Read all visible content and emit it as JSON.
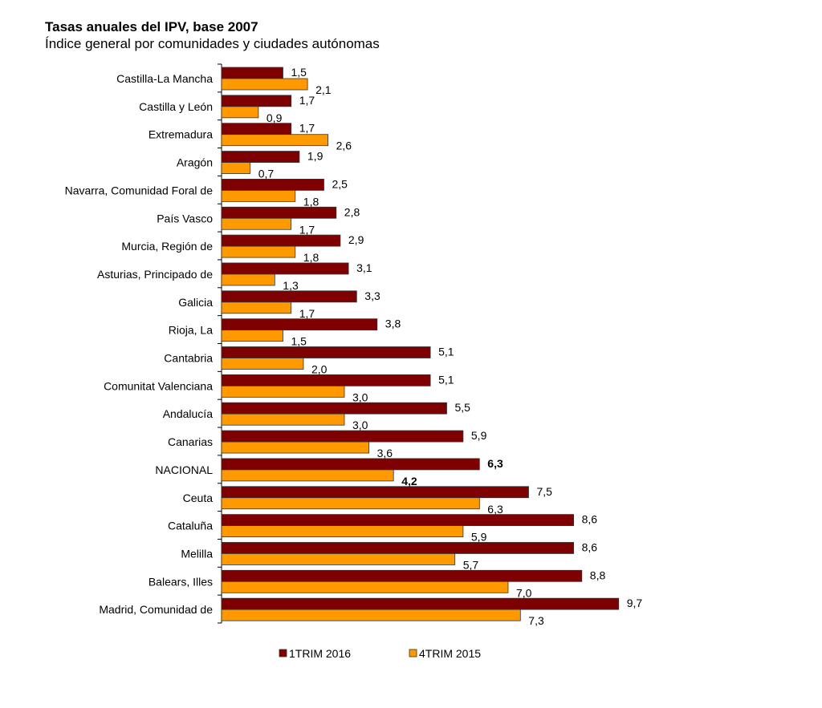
{
  "chart_data": {
    "type": "bar",
    "orientation": "horizontal",
    "title": "Tasas anuales del IPV, base 2007",
    "subtitle": "Índice general por comunidades y ciudades autónomas",
    "categories": [
      "Castilla-La Mancha",
      "Castilla y León",
      "Extremadura",
      "Aragón",
      "Navarra, Comunidad Foral de",
      "País Vasco",
      "Murcia, Región de",
      "Asturias, Principado de",
      "Galicia",
      "Rioja, La",
      "Cantabria",
      "Comunitat Valenciana",
      "Andalucía",
      "Canarias",
      "NACIONAL",
      "Ceuta",
      "Cataluña",
      "Melilla",
      "Balears, Illes",
      "Madrid, Comunidad de"
    ],
    "series": [
      {
        "name": "1TRIM 2016",
        "color": "#7f0000",
        "values": [
          1.5,
          1.7,
          1.7,
          1.9,
          2.5,
          2.8,
          2.9,
          3.1,
          3.3,
          3.8,
          5.1,
          5.1,
          5.5,
          5.9,
          6.3,
          7.5,
          8.6,
          8.6,
          8.8,
          9.7
        ]
      },
      {
        "name": "4TRIM 2015",
        "color": "#ff9900",
        "values": [
          2.1,
          0.9,
          2.6,
          0.7,
          1.8,
          1.7,
          1.8,
          1.3,
          1.7,
          1.5,
          2.0,
          3.0,
          3.0,
          3.6,
          4.2,
          6.3,
          5.9,
          5.7,
          7.0,
          7.3
        ]
      }
    ],
    "highlight_category": "NACIONAL",
    "xlim": [
      0,
      10
    ],
    "grid": false,
    "legend": "bottom",
    "decimal_separator": ","
  }
}
